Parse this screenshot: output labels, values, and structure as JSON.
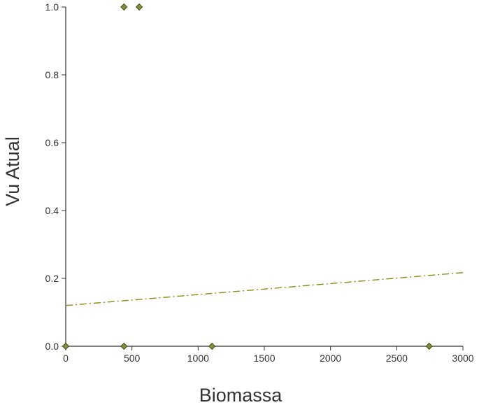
{
  "chart_data": {
    "type": "scatter",
    "xlabel": "Biomassa",
    "ylabel": "Vu Atual",
    "xlim": [
      0,
      3000
    ],
    "ylim": [
      0,
      1
    ],
    "x_ticks": [
      "0",
      "500",
      "1000",
      "1500",
      "2000",
      "2500",
      "3000"
    ],
    "y_ticks": [
      "0.0",
      "0.2",
      "0.4",
      "0.6",
      "0.8",
      "1.0"
    ],
    "series": [
      {
        "points": [
          {
            "x": 0,
            "y": 0.0
          },
          {
            "x": 440,
            "y": 0.0
          },
          {
            "x": 440,
            "y": 1.0
          },
          {
            "x": 555,
            "y": 1.0
          },
          {
            "x": 1105,
            "y": 0.0
          },
          {
            "x": 2745,
            "y": 0.0
          }
        ],
        "color": "#7b8f3c"
      }
    ],
    "trendline": {
      "x": [
        0,
        3000
      ],
      "y": [
        0.12,
        0.217
      ],
      "color": "#8a8a10",
      "style": "dash-dot"
    },
    "grid": false
  }
}
